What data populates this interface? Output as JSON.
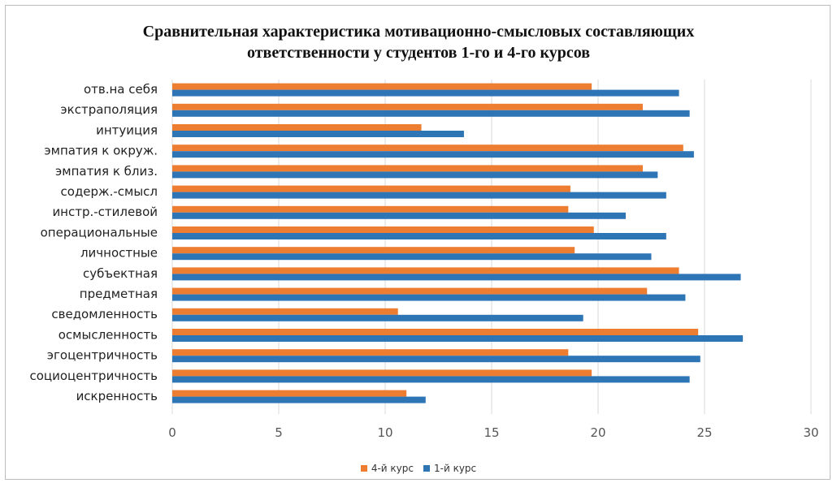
{
  "chart_data": {
    "type": "bar",
    "orientation": "horizontal",
    "title_line1": "Сравнительная характеристика мотивационно-смысловых составляющих",
    "title_line2": "ответственности у студентов 1-го и 4-го курсов",
    "xlim": [
      0,
      30
    ],
    "x_ticks": [
      "0",
      "5",
      "10",
      "15",
      "20",
      "25",
      "30"
    ],
    "grid": "vertical",
    "legend_position": "bottom",
    "categories": [
      "отв.на себя",
      "экстраполяция",
      "интуиция",
      "эмпатия к окруж.",
      "эмпатия к близ.",
      "содерж.-смысл",
      "инстр.-стилевой",
      "операциональные",
      "личностные",
      "субъектная",
      "предметная",
      "сведомленность",
      "осмысленность",
      "эгоцентричность",
      "социоцентричность",
      "искренность"
    ],
    "series": [
      {
        "name": "4-й курс",
        "color": "#ed7d31",
        "values": [
          19.7,
          22.1,
          11.7,
          24.0,
          22.1,
          18.7,
          18.6,
          19.8,
          18.9,
          23.8,
          22.3,
          10.6,
          24.7,
          18.6,
          19.7,
          11.0
        ]
      },
      {
        "name": "1-й курс",
        "color": "#2e75b6",
        "values": [
          23.8,
          24.3,
          13.7,
          24.5,
          22.8,
          23.2,
          21.3,
          23.2,
          22.5,
          26.7,
          24.1,
          19.3,
          26.8,
          24.8,
          24.3,
          11.9
        ]
      }
    ]
  }
}
